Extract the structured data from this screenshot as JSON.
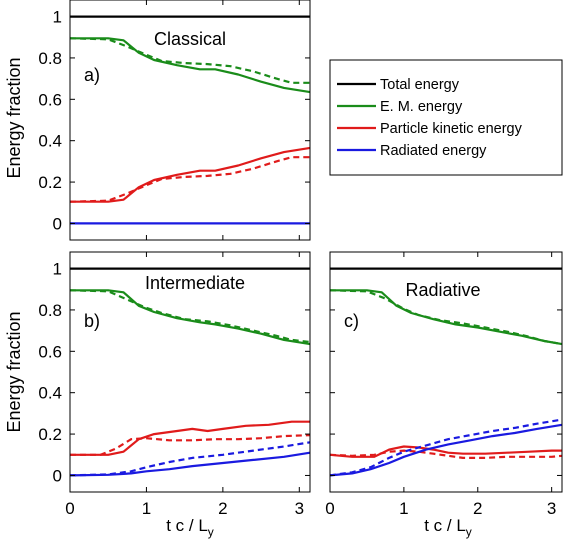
{
  "chart_data": [
    {
      "type": "line",
      "panel_label": "a)",
      "title": "Classical",
      "ylabel": "Energy fraction",
      "xlabel": "",
      "xlim": [
        0,
        3.14
      ],
      "ylim": [
        -0.08,
        1.08
      ],
      "xticks": [
        "0",
        "1",
        "2",
        "3"
      ],
      "yticks": [
        "0",
        "0.2",
        "0.4",
        "0.6",
        "0.8",
        "1"
      ],
      "series": [
        {
          "name": "Total energy",
          "color": "#000000",
          "style": "solid",
          "x": [
            0,
            3.14
          ],
          "y": [
            1,
            1
          ]
        },
        {
          "name": "E. M. energy",
          "color": "#1a8c1a",
          "style": "solid",
          "x": [
            0,
            0.5,
            0.7,
            0.9,
            1.1,
            1.4,
            1.7,
            1.9,
            2.2,
            2.5,
            2.8,
            3.14
          ],
          "y": [
            0.895,
            0.895,
            0.885,
            0.825,
            0.79,
            0.765,
            0.745,
            0.745,
            0.72,
            0.685,
            0.655,
            0.635
          ]
        },
        {
          "x": [
            0,
            0.5,
            0.75,
            1.0,
            1.2,
            1.5,
            1.8,
            2.1,
            2.4,
            2.7,
            2.9,
            3.14
          ],
          "y": [
            0.895,
            0.89,
            0.855,
            0.815,
            0.785,
            0.775,
            0.77,
            0.76,
            0.735,
            0.7,
            0.68,
            0.68
          ],
          "color": "#1a8c1a",
          "style": "dashed"
        },
        {
          "name": "Particle kinetic energy",
          "color": "#e01b1b",
          "style": "solid",
          "x": [
            0,
            0.5,
            0.7,
            0.9,
            1.1,
            1.4,
            1.7,
            1.9,
            2.2,
            2.5,
            2.8,
            3.14
          ],
          "y": [
            0.105,
            0.105,
            0.115,
            0.175,
            0.21,
            0.235,
            0.255,
            0.255,
            0.28,
            0.315,
            0.345,
            0.365
          ]
        },
        {
          "x": [
            0,
            0.5,
            0.75,
            1.0,
            1.2,
            1.5,
            1.8,
            2.1,
            2.4,
            2.7,
            2.9,
            3.14
          ],
          "y": [
            0.105,
            0.11,
            0.145,
            0.185,
            0.215,
            0.225,
            0.23,
            0.24,
            0.265,
            0.3,
            0.32,
            0.32
          ],
          "color": "#e01b1b",
          "style": "dashed"
        },
        {
          "name": "Radiated energy",
          "color": "#1a1ae0",
          "style": "solid",
          "x": [
            0,
            3.14
          ],
          "y": [
            0,
            0
          ]
        }
      ],
      "legend": {
        "position": "right"
      }
    },
    {
      "type": "line",
      "panel_label": "b)",
      "title": "Intermediate",
      "ylabel": "Energy fraction",
      "xlabel": "t c / L_y",
      "xlim": [
        0,
        3.14
      ],
      "ylim": [
        -0.08,
        1.08
      ],
      "xticks": [
        "0",
        "1",
        "2",
        "3"
      ],
      "yticks": [
        "0",
        "0.2",
        "0.4",
        "0.6",
        "0.8",
        "1"
      ],
      "series": [
        {
          "x": [
            0,
            3.14
          ],
          "y": [
            1,
            1
          ],
          "color": "#000000",
          "style": "solid"
        },
        {
          "x": [
            0,
            0.5,
            0.7,
            0.9,
            1.1,
            1.4,
            1.7,
            1.9,
            2.2,
            2.5,
            2.8,
            3.14
          ],
          "y": [
            0.895,
            0.895,
            0.885,
            0.82,
            0.79,
            0.76,
            0.74,
            0.73,
            0.71,
            0.685,
            0.655,
            0.635
          ],
          "color": "#1a8c1a",
          "style": "solid"
        },
        {
          "x": [
            0,
            0.5,
            0.75,
            1.0,
            1.2,
            1.5,
            1.8,
            2.1,
            2.4,
            2.7,
            2.9,
            3.14
          ],
          "y": [
            0.895,
            0.89,
            0.85,
            0.81,
            0.785,
            0.755,
            0.745,
            0.725,
            0.7,
            0.675,
            0.655,
            0.645
          ],
          "color": "#1a8c1a",
          "style": "dashed"
        },
        {
          "x": [
            0,
            0.5,
            0.7,
            0.9,
            1.1,
            1.4,
            1.6,
            1.8,
            2.0,
            2.3,
            2.6,
            2.9,
            3.14
          ],
          "y": [
            0.1,
            0.1,
            0.115,
            0.175,
            0.2,
            0.215,
            0.225,
            0.215,
            0.225,
            0.24,
            0.245,
            0.26,
            0.26
          ],
          "color": "#e01b1b",
          "style": "solid"
        },
        {
          "x": [
            0,
            0.4,
            0.6,
            0.8,
            1.0,
            1.3,
            1.6,
            1.9,
            2.2,
            2.5,
            2.8,
            3.14
          ],
          "y": [
            0.1,
            0.1,
            0.13,
            0.175,
            0.18,
            0.17,
            0.17,
            0.175,
            0.175,
            0.18,
            0.19,
            0.195
          ],
          "color": "#e01b1b",
          "style": "dashed"
        },
        {
          "x": [
            0,
            0.5,
            0.8,
            1.0,
            1.3,
            1.6,
            2.0,
            2.4,
            2.8,
            3.14
          ],
          "y": [
            0,
            0.003,
            0.01,
            0.02,
            0.03,
            0.045,
            0.06,
            0.075,
            0.09,
            0.11
          ],
          "color": "#1a1ae0",
          "style": "solid"
        },
        {
          "x": [
            0,
            0.5,
            0.8,
            1.0,
            1.3,
            1.6,
            2.0,
            2.4,
            2.8,
            3.14
          ],
          "y": [
            0,
            0.005,
            0.02,
            0.04,
            0.065,
            0.085,
            0.1,
            0.12,
            0.14,
            0.16
          ],
          "color": "#1a1ae0",
          "style": "dashed"
        }
      ]
    },
    {
      "type": "line",
      "panel_label": "c)",
      "title": "Radiative",
      "ylabel": "",
      "xlabel": "t c / L_y",
      "xlim": [
        0,
        3.14
      ],
      "ylim": [
        -0.08,
        1.08
      ],
      "xticks": [
        "0",
        "1",
        "2",
        "3"
      ],
      "yticks": [],
      "series": [
        {
          "x": [
            0,
            3.14
          ],
          "y": [
            1,
            1
          ],
          "color": "#000000",
          "style": "solid"
        },
        {
          "x": [
            0,
            0.5,
            0.7,
            0.9,
            1.1,
            1.4,
            1.7,
            2.0,
            2.3,
            2.6,
            2.9,
            3.14
          ],
          "y": [
            0.895,
            0.895,
            0.885,
            0.82,
            0.785,
            0.755,
            0.73,
            0.715,
            0.695,
            0.675,
            0.65,
            0.635
          ],
          "color": "#1a8c1a",
          "style": "solid"
        },
        {
          "x": [
            0,
            0.5,
            0.75,
            1.0,
            1.2,
            1.5,
            1.8,
            2.1,
            2.4,
            2.7,
            2.9,
            3.14
          ],
          "y": [
            0.895,
            0.89,
            0.855,
            0.805,
            0.775,
            0.75,
            0.735,
            0.715,
            0.695,
            0.67,
            0.65,
            0.635
          ],
          "color": "#1a8c1a",
          "style": "dashed"
        },
        {
          "x": [
            0,
            0.3,
            0.6,
            0.8,
            1.0,
            1.2,
            1.4,
            1.6,
            1.8,
            2.1,
            2.4,
            2.7,
            3.0,
            3.14
          ],
          "y": [
            0.1,
            0.09,
            0.09,
            0.125,
            0.14,
            0.135,
            0.125,
            0.11,
            0.105,
            0.105,
            0.11,
            0.115,
            0.12,
            0.12
          ],
          "color": "#e01b1b",
          "style": "solid"
        },
        {
          "x": [
            0,
            0.3,
            0.6,
            0.8,
            1.0,
            1.2,
            1.4,
            1.6,
            1.8,
            2.1,
            2.4,
            2.7,
            3.0,
            3.14
          ],
          "y": [
            0.1,
            0.095,
            0.1,
            0.115,
            0.12,
            0.115,
            0.105,
            0.095,
            0.085,
            0.085,
            0.09,
            0.09,
            0.09,
            0.095
          ],
          "color": "#e01b1b",
          "style": "dashed"
        },
        {
          "x": [
            0,
            0.3,
            0.55,
            0.8,
            1.0,
            1.3,
            1.6,
            1.9,
            2.2,
            2.5,
            2.8,
            3.14
          ],
          "y": [
            0,
            0.01,
            0.03,
            0.06,
            0.09,
            0.125,
            0.15,
            0.17,
            0.19,
            0.205,
            0.225,
            0.245
          ],
          "color": "#1a1ae0",
          "style": "solid"
        },
        {
          "x": [
            0,
            0.3,
            0.55,
            0.8,
            1.0,
            1.3,
            1.6,
            1.9,
            2.2,
            2.5,
            2.8,
            3.14
          ],
          "y": [
            0,
            0.015,
            0.04,
            0.085,
            0.115,
            0.145,
            0.175,
            0.195,
            0.215,
            0.23,
            0.25,
            0.27
          ],
          "color": "#1a1ae0",
          "style": "dashed"
        }
      ]
    }
  ]
}
